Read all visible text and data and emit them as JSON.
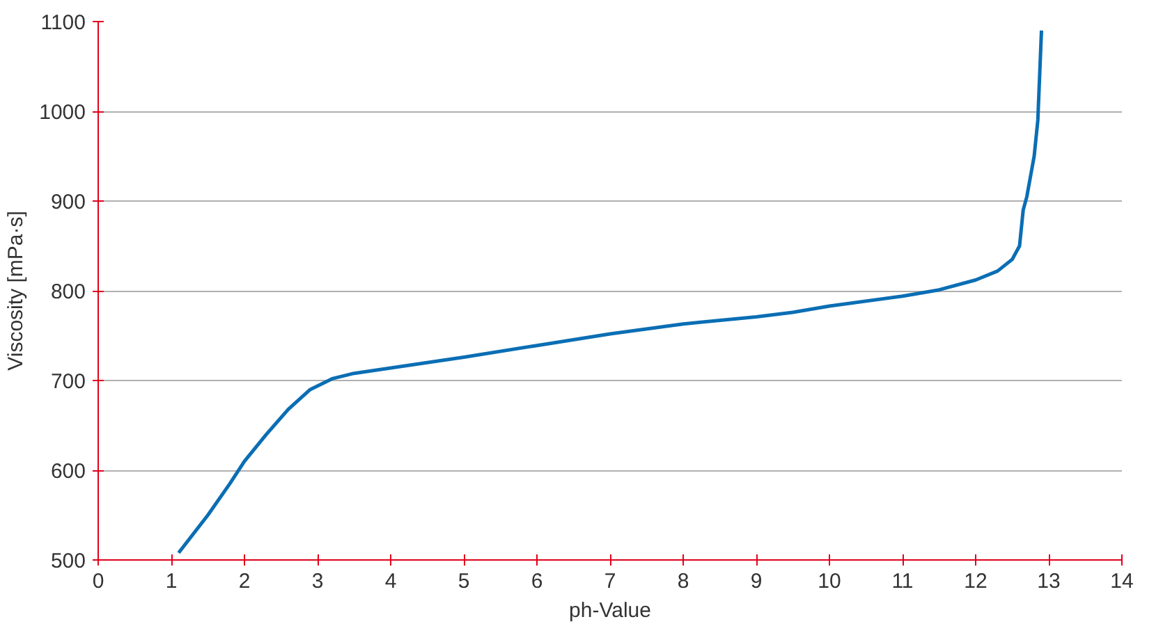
{
  "chart_data": {
    "type": "line",
    "xlabel": "ph-Value",
    "ylabel": "Viscosity [mPa·s]",
    "x": [
      1.1,
      1.5,
      1.8,
      2.0,
      2.3,
      2.6,
      2.9,
      3.2,
      3.5,
      4,
      5,
      6,
      7,
      8,
      9,
      9.5,
      10,
      11,
      11.5,
      12,
      12.3,
      12.5,
      12.6,
      12.65,
      12.7,
      12.8,
      12.85,
      12.9
    ],
    "series": [
      {
        "color": "#0a6eb4",
        "values": [
          508,
          550,
          585,
          610,
          640,
          668,
          690,
          702,
          708,
          714,
          726,
          739,
          752,
          763,
          771,
          776,
          783,
          794,
          801,
          812,
          822,
          835,
          850,
          890,
          905,
          950,
          990,
          1090
        ]
      }
    ],
    "xlim": [
      0,
      14
    ],
    "ylim": [
      500,
      1100
    ],
    "xticks": [
      0,
      1,
      2,
      3,
      4,
      5,
      6,
      7,
      8,
      9,
      10,
      11,
      12,
      13,
      14
    ],
    "yticks": [
      500,
      600,
      700,
      800,
      900,
      1000,
      1100
    ],
    "grid": "y",
    "marker": "none",
    "line_style": "solid"
  }
}
